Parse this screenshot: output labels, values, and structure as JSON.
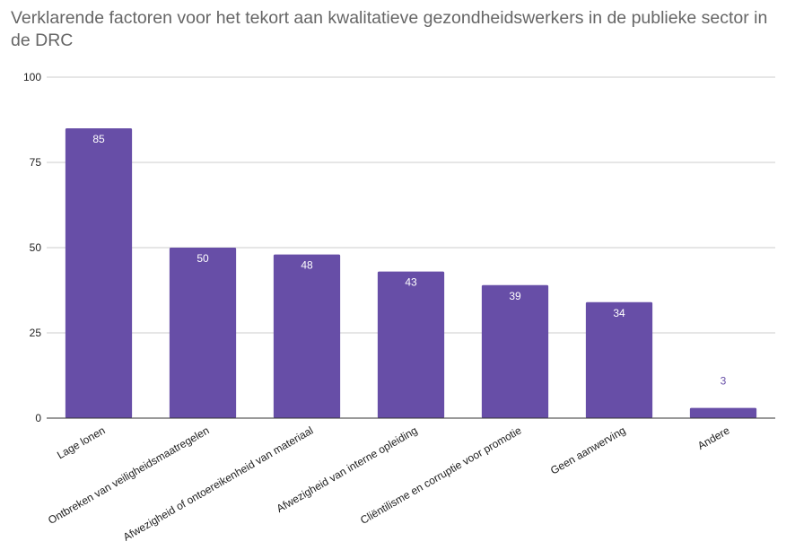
{
  "chart_data": {
    "type": "bar",
    "title": "Verklarende factoren voor het tekort aan kwalitatieve gezondheidswerkers in de publieke sector in de DRC",
    "xlabel": "",
    "ylabel": "",
    "categories": [
      "Lage lonen",
      "Ontbreken van veiligheidsmaatregelen",
      "Afwezigheid of ontoereikenheid van materiaal",
      "Afwezigheid van interne opleiding",
      "Cliëntilisme en corruptie voor promotie",
      "Geen aanwerving",
      "Andere"
    ],
    "values": [
      85,
      50,
      48,
      43,
      39,
      34,
      3
    ],
    "data_labels": [
      "85",
      "50",
      "48",
      "43",
      "39",
      "34",
      "3"
    ],
    "ylim": [
      0,
      100
    ],
    "yticks": [
      0,
      25,
      50,
      75,
      100
    ],
    "ytick_labels": [
      "0",
      "25",
      "50",
      "75",
      "100"
    ],
    "grid": true,
    "legend": "none",
    "bar_color": "#674ea7",
    "label_inside_color": "#ffffff",
    "label_outside_color": "#674ea7",
    "gridline_color": "#cccccc",
    "axis_color": "#333333"
  }
}
